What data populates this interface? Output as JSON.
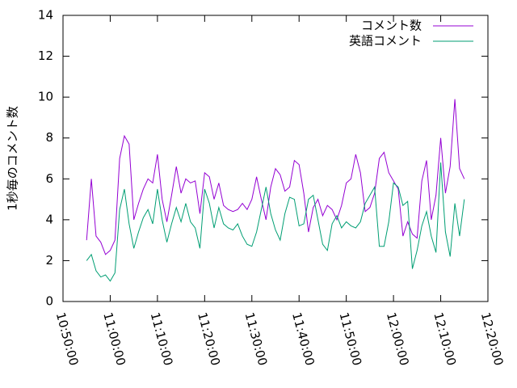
{
  "chart_data": {
    "type": "line",
    "ylabel": "1秒毎のコメント数",
    "x": [
      "10:55:00",
      "10:56:00",
      "10:57:00",
      "10:58:00",
      "10:59:00",
      "11:00:00",
      "11:01:00",
      "11:02:00",
      "11:03:00",
      "11:04:00",
      "11:05:00",
      "11:06:00",
      "11:07:00",
      "11:08:00",
      "11:09:00",
      "11:10:00",
      "11:11:00",
      "11:12:00",
      "11:13:00",
      "11:14:00",
      "11:15:00",
      "11:16:00",
      "11:17:00",
      "11:18:00",
      "11:19:00",
      "11:20:00",
      "11:21:00",
      "11:22:00",
      "11:23:00",
      "11:24:00",
      "11:25:00",
      "11:26:00",
      "11:27:00",
      "11:28:00",
      "11:29:00",
      "11:30:00",
      "11:31:00",
      "11:32:00",
      "11:33:00",
      "11:34:00",
      "11:35:00",
      "11:36:00",
      "11:37:00",
      "11:38:00",
      "11:39:00",
      "11:40:00",
      "11:41:00",
      "11:42:00",
      "11:43:00",
      "11:44:00",
      "11:45:00",
      "11:46:00",
      "11:47:00",
      "11:48:00",
      "11:49:00",
      "11:50:00",
      "11:51:00",
      "11:52:00",
      "11:53:00",
      "11:54:00",
      "11:55:00",
      "11:56:00",
      "11:57:00",
      "11:58:00",
      "11:59:00",
      "12:00:00",
      "12:01:00",
      "12:02:00",
      "12:03:00",
      "12:04:00",
      "12:05:00",
      "12:06:00",
      "12:07:00",
      "12:08:00",
      "12:09:00",
      "12:10:00",
      "12:11:00",
      "12:12:00",
      "12:13:00",
      "12:14:00",
      "12:15:00"
    ],
    "series": [
      {
        "name": "コメント数",
        "color": "#9400d3",
        "values": [
          3.0,
          6.0,
          3.2,
          2.9,
          2.3,
          2.5,
          3.0,
          7.0,
          8.1,
          7.7,
          4.0,
          4.8,
          5.5,
          6.0,
          5.8,
          7.2,
          5.0,
          3.9,
          5.2,
          6.6,
          5.3,
          6.0,
          5.8,
          5.9,
          4.3,
          6.3,
          6.1,
          5.0,
          5.8,
          4.7,
          4.5,
          4.4,
          4.5,
          4.8,
          4.5,
          5.0,
          6.1,
          5.0,
          4.0,
          5.6,
          6.5,
          6.2,
          5.4,
          5.6,
          6.9,
          6.7,
          5.3,
          3.4,
          4.6,
          5.0,
          4.2,
          4.7,
          4.5,
          4.0,
          4.7,
          5.8,
          6.0,
          7.2,
          6.3,
          4.4,
          4.6,
          5.3,
          7.0,
          7.3,
          6.3,
          5.9,
          5.5,
          3.2,
          3.9,
          3.3,
          3.1,
          5.9,
          6.9,
          4.0,
          5.2,
          8.0,
          5.3,
          6.6,
          9.9,
          6.5,
          6.0
        ]
      },
      {
        "name": "英語コメント",
        "color": "#009e73",
        "values": [
          2.0,
          2.3,
          1.5,
          1.2,
          1.3,
          1.0,
          1.4,
          4.5,
          5.5,
          3.8,
          2.6,
          3.4,
          4.1,
          4.5,
          3.8,
          5.5,
          4.0,
          2.9,
          3.8,
          4.6,
          3.9,
          4.8,
          3.9,
          3.6,
          2.6,
          5.5,
          4.8,
          3.6,
          4.6,
          3.8,
          3.6,
          3.5,
          3.8,
          3.2,
          2.8,
          2.7,
          3.4,
          4.5,
          5.6,
          4.3,
          3.5,
          3.0,
          4.3,
          5.1,
          5.0,
          3.7,
          3.8,
          5.0,
          5.2,
          4.0,
          2.8,
          2.5,
          3.8,
          4.2,
          3.6,
          3.9,
          3.7,
          3.6,
          3.9,
          4.8,
          5.2,
          5.6,
          2.7,
          2.7,
          3.9,
          5.8,
          5.6,
          4.7,
          4.9,
          1.6,
          2.5,
          3.7,
          4.4,
          3.2,
          2.4,
          6.8,
          3.4,
          2.2,
          4.8,
          3.2,
          5.0
        ]
      }
    ],
    "xlim": [
      "10:50:00",
      "12:20:00"
    ],
    "xticks": [
      "10:50:00",
      "11:00:00",
      "11:10:00",
      "11:20:00",
      "11:30:00",
      "11:40:00",
      "11:50:00",
      "12:00:00",
      "12:10:00",
      "12:20:00"
    ],
    "ylim": [
      0,
      14
    ],
    "yticks": [
      0,
      2,
      4,
      6,
      8,
      10,
      12,
      14
    ],
    "legend": "top-right"
  }
}
